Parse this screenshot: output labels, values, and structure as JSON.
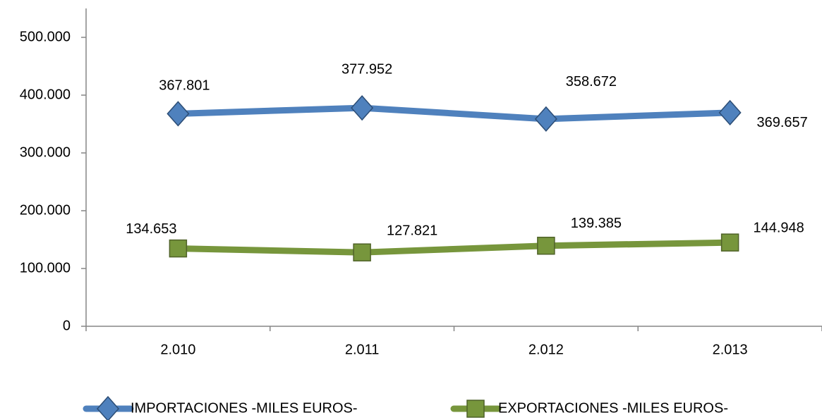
{
  "chart_data": {
    "type": "line",
    "categories": [
      "2.010",
      "2.011",
      "2.012",
      "2.013"
    ],
    "series": [
      {
        "name": "IMPORTACIONES -MILES EUROS-",
        "color": "#4f81bd",
        "values": [
          367801,
          377952,
          358672,
          369657
        ],
        "value_labels": [
          "367.801",
          "377.952",
          "358.672",
          "369.657"
        ]
      },
      {
        "name": "EXPORTACIONES -MILES EUROS-",
        "color": "#77963c",
        "values": [
          134653,
          127821,
          139385,
          144948
        ],
        "value_labels": [
          "134.653",
          "127.821",
          "139.385",
          "144.948"
        ]
      }
    ],
    "ylim": [
      0,
      550000
    ],
    "yticks": [
      0,
      {
        "value": 100000,
        "label": "100.000"
      },
      {
        "value": 200000,
        "label": "200.000"
      },
      {
        "value": 300000,
        "label": "300.000"
      },
      {
        "value": 400000,
        "label": "400.000"
      },
      {
        "value": 500000,
        "label": "500.000"
      }
    ],
    "grid": false,
    "legend": "bottom"
  }
}
